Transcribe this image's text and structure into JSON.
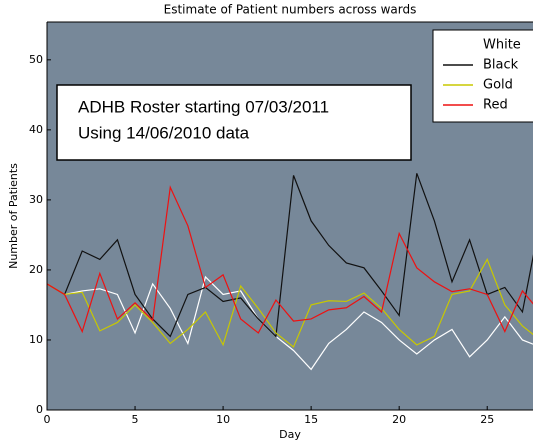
{
  "chart_data": {
    "type": "line",
    "title": "Estimate of Patient numbers across wards",
    "xlabel": "Day",
    "ylabel": "Number of Patients",
    "annotation": [
      "ADHB Roster starting 07/03/2011",
      "Using 14/06/2010 data"
    ],
    "x": [
      0,
      1,
      2,
      3,
      4,
      5,
      6,
      7,
      8,
      9,
      10,
      11,
      12,
      13,
      14,
      15,
      16,
      17,
      18,
      19,
      20,
      21,
      22,
      23,
      24,
      25,
      26,
      27,
      28
    ],
    "series": [
      {
        "name": "White",
        "color": "#ffffff",
        "values": [
          18,
          16.5,
          17,
          17.3,
          16.5,
          11,
          18,
          14.5,
          9.5,
          19,
          16.5,
          17,
          13,
          10.5,
          8.5,
          5.8,
          9.5,
          11.5,
          14,
          12.5,
          10,
          8,
          10,
          11.5,
          7.6,
          10,
          13.3,
          10,
          9
        ]
      },
      {
        "name": "Black",
        "color": "#111111",
        "values": [
          18,
          16.5,
          22.7,
          21.5,
          24.3,
          16.5,
          13,
          10.5,
          16.5,
          17.5,
          15.5,
          16,
          13,
          10.5,
          33.5,
          27,
          23.5,
          21,
          20.3,
          17,
          13.5,
          33.8,
          27,
          18.3,
          24.3,
          16.5,
          17.5,
          14,
          27
        ]
      },
      {
        "name": "Gold",
        "color": "#c8c800",
        "values": [
          18,
          16.5,
          16.8,
          11.3,
          12.5,
          15,
          12.5,
          9.5,
          11.5,
          14,
          9.3,
          17.7,
          14.5,
          11,
          9,
          15,
          15.6,
          15.5,
          16.7,
          14.5,
          11.5,
          9.3,
          10.5,
          16.5,
          17,
          21.5,
          15,
          12,
          10
        ]
      },
      {
        "name": "Red",
        "color": "#ee1111",
        "values": [
          18,
          16.5,
          11.2,
          19.5,
          13,
          15.3,
          12.8,
          31.8,
          26.3,
          17.5,
          19.3,
          13,
          11,
          15.7,
          12.7,
          13,
          14.3,
          14.6,
          16.2,
          14,
          25.2,
          20.3,
          18.3,
          16.9,
          17.3,
          16.5,
          11.2,
          17,
          14
        ]
      }
    ],
    "xlim": [
      0,
      27.6
    ],
    "xticks": [
      0,
      5,
      10,
      15,
      20,
      25
    ],
    "ylim": [
      0,
      55.4
    ],
    "yticks": [
      0,
      10,
      20,
      30,
      40,
      50
    ],
    "legend": "upper right",
    "background": "#778899"
  }
}
